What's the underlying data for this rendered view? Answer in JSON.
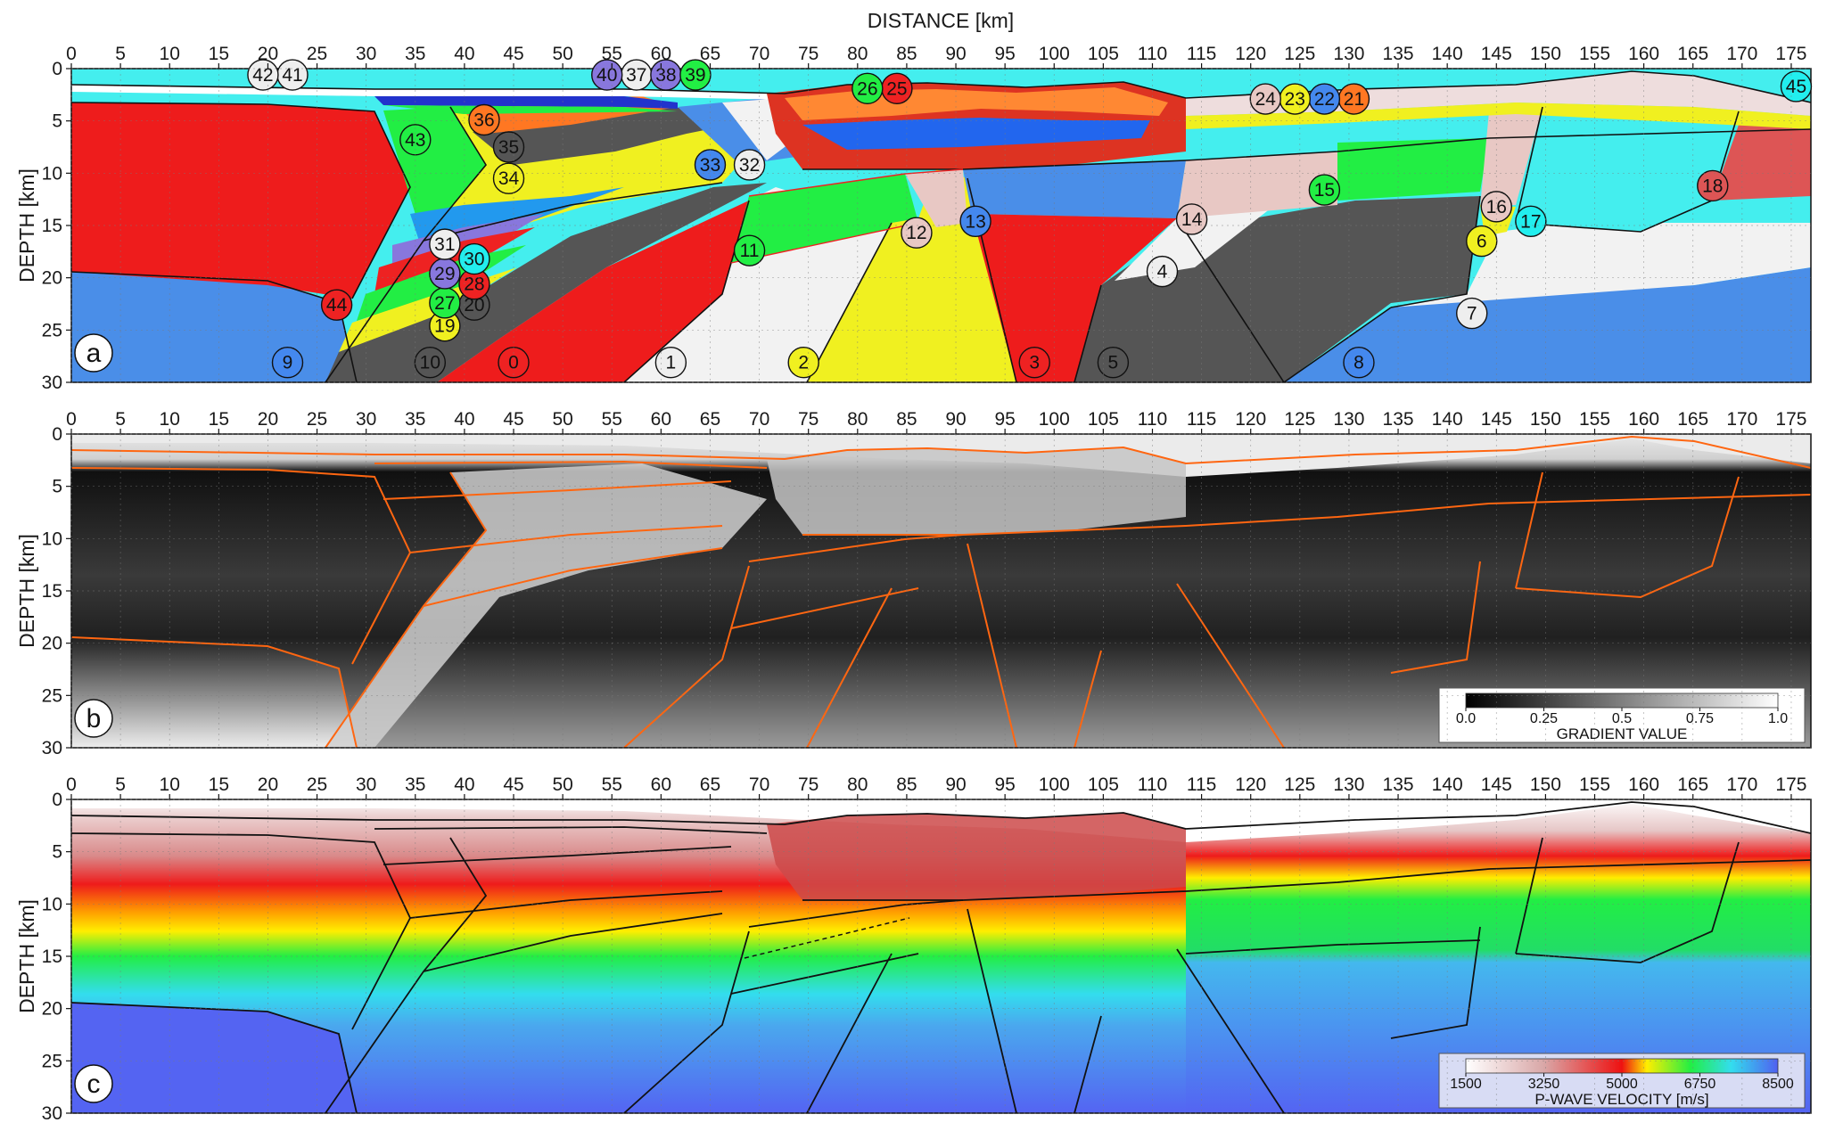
{
  "figure": {
    "x_axis_title": "DISTANCE [km]",
    "y_axis_title": "DEPTH [km]",
    "x_ticks": [
      0,
      5,
      10,
      15,
      20,
      25,
      30,
      35,
      40,
      45,
      50,
      55,
      60,
      65,
      70,
      75,
      80,
      85,
      90,
      95,
      100,
      105,
      110,
      115,
      120,
      125,
      130,
      135,
      140,
      145,
      150,
      155,
      160,
      165,
      170,
      175
    ],
    "y_ticks": [
      0,
      5,
      10,
      15,
      20,
      25,
      30
    ],
    "x_range_km": [
      0,
      177
    ],
    "depth_range_km": [
      0,
      30
    ],
    "grid": "dotted"
  },
  "panels": [
    {
      "id": "a",
      "label": "a",
      "kind": "geological-units"
    },
    {
      "id": "b",
      "label": "b",
      "kind": "gradient",
      "colorbar": {
        "title": "GRADIENT VALUE",
        "ticks": [
          "0.0",
          "0.25",
          "0.5",
          "0.75",
          "1.0"
        ],
        "colors": [
          "#000000",
          "#ffffff"
        ]
      }
    },
    {
      "id": "c",
      "label": "c",
      "kind": "velocity",
      "colorbar": {
        "title": "P-WAVE VELOCITY [m/s]",
        "ticks": [
          "1500",
          "3250",
          "5000",
          "6750",
          "8500"
        ],
        "colors": [
          "#ffffff",
          "#d9a7a7",
          "#ee1111",
          "#ffee00",
          "#22ee44",
          "#33ddee",
          "#5060f0"
        ]
      }
    }
  ],
  "unit_labels": [
    {
      "n": "0",
      "x": 45,
      "d": 28.1,
      "color": "#ee2222"
    },
    {
      "n": "1",
      "x": 61,
      "d": 28.1,
      "color": "#eeeeee"
    },
    {
      "n": "2",
      "x": 74.5,
      "d": 28.1,
      "color": "#f0f020"
    },
    {
      "n": "3",
      "x": 98,
      "d": 28.1,
      "color": "#ee2222"
    },
    {
      "n": "4",
      "x": 111,
      "d": 19.4,
      "color": "#eeeeee"
    },
    {
      "n": "5",
      "x": 106,
      "d": 28.1,
      "color": "#555555"
    },
    {
      "n": "6",
      "x": 143.5,
      "d": 16.5,
      "color": "#f0f020"
    },
    {
      "n": "7",
      "x": 142.5,
      "d": 23.4,
      "color": "#eeeeee"
    },
    {
      "n": "8",
      "x": 131,
      "d": 28.1,
      "color": "#4488ee"
    },
    {
      "n": "9",
      "x": 22,
      "d": 28.1,
      "color": "#4488ee"
    },
    {
      "n": "10",
      "x": 36.5,
      "d": 28.1,
      "color": "#555555"
    },
    {
      "n": "11",
      "x": 69,
      "d": 17.4,
      "color": "#22ee44"
    },
    {
      "n": "12",
      "x": 86,
      "d": 15.7,
      "color": "#e8c8c4"
    },
    {
      "n": "13",
      "x": 92,
      "d": 14.6,
      "color": "#4488ee"
    },
    {
      "n": "14",
      "x": 114,
      "d": 14.4,
      "color": "#e8c8c4"
    },
    {
      "n": "15",
      "x": 127.5,
      "d": 11.6,
      "color": "#22ee44"
    },
    {
      "n": "16",
      "x": 145,
      "d": 13.2,
      "color": "#e8c8c4"
    },
    {
      "n": "17",
      "x": 148.5,
      "d": 14.6,
      "color": "#22eeee"
    },
    {
      "n": "18",
      "x": 167,
      "d": 11.2,
      "color": "#dd5555"
    },
    {
      "n": "19",
      "x": 38,
      "d": 24.6,
      "color": "#f0f020"
    },
    {
      "n": "20",
      "x": 41,
      "d": 22.6,
      "color": "#555555"
    },
    {
      "n": "21",
      "x": 130.5,
      "d": 2.9,
      "color": "#ff7722"
    },
    {
      "n": "22",
      "x": 127.5,
      "d": 2.9,
      "color": "#4488ee"
    },
    {
      "n": "23",
      "x": 124.5,
      "d": 2.9,
      "color": "#f0f020"
    },
    {
      "n": "24",
      "x": 121.5,
      "d": 2.9,
      "color": "#e8c8c4"
    },
    {
      "n": "25",
      "x": 84,
      "d": 1.9,
      "color": "#ee2222"
    },
    {
      "n": "26",
      "x": 81,
      "d": 1.9,
      "color": "#22ee44"
    },
    {
      "n": "27",
      "x": 38,
      "d": 22.4,
      "color": "#22ee44"
    },
    {
      "n": "28",
      "x": 41,
      "d": 20.6,
      "color": "#ee2222"
    },
    {
      "n": "29",
      "x": 38,
      "d": 19.6,
      "color": "#8877dd"
    },
    {
      "n": "30",
      "x": 41,
      "d": 18.2,
      "color": "#22eeee"
    },
    {
      "n": "31",
      "x": 38,
      "d": 16.8,
      "color": "#eeeeee"
    },
    {
      "n": "32",
      "x": 69,
      "d": 9.2,
      "color": "#eeeeee"
    },
    {
      "n": "33",
      "x": 65,
      "d": 9.2,
      "color": "#4488ee"
    },
    {
      "n": "34",
      "x": 44.5,
      "d": 10.5,
      "color": "#f0f020"
    },
    {
      "n": "35",
      "x": 44.5,
      "d": 7.5,
      "color": "#555555"
    },
    {
      "n": "36",
      "x": 42,
      "d": 4.9,
      "color": "#ff7722"
    },
    {
      "n": "37",
      "x": 57.5,
      "d": 0.6,
      "color": "#eeeeee"
    },
    {
      "n": "38",
      "x": 60.5,
      "d": 0.6,
      "color": "#8877dd"
    },
    {
      "n": "39",
      "x": 63.5,
      "d": 0.6,
      "color": "#22ee44"
    },
    {
      "n": "40",
      "x": 54.5,
      "d": 0.6,
      "color": "#8877dd"
    },
    {
      "n": "41",
      "x": 22.5,
      "d": 0.6,
      "color": "#eeeeee"
    },
    {
      "n": "42",
      "x": 19.5,
      "d": 0.6,
      "color": "#eeeeee"
    },
    {
      "n": "43",
      "x": 35,
      "d": 6.8,
      "color": "#22ee44"
    },
    {
      "n": "44",
      "x": 27,
      "d": 22.6,
      "color": "#ee2222"
    },
    {
      "n": "45",
      "x": 175.5,
      "d": 1.7,
      "color": "#22eeee"
    }
  ]
}
